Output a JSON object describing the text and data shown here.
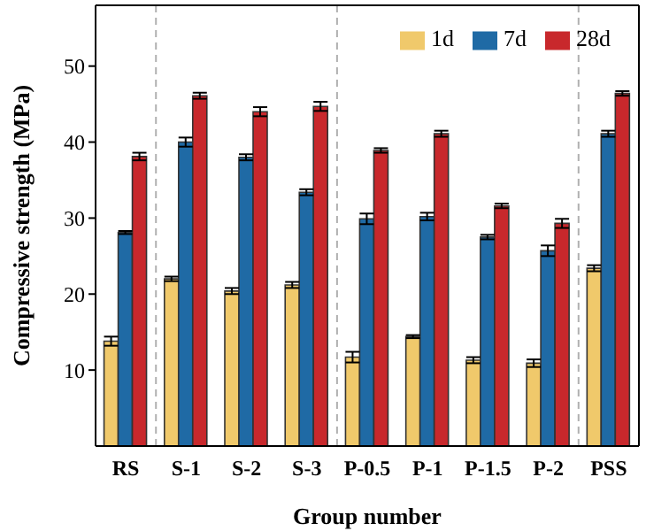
{
  "chart_data": {
    "type": "bar",
    "xlabel": "Group number",
    "ylabel": "Compressive strength (MPa)",
    "categories": [
      "RS",
      "S-1",
      "S-2",
      "S-3",
      "P-0.5",
      "P-1",
      "P-1.5",
      "P-2",
      "PSS"
    ],
    "series": [
      {
        "name": "1d",
        "color": "#f0c96b",
        "values": [
          13.8,
          22.0,
          20.4,
          21.2,
          11.7,
          14.4,
          11.3,
          10.9,
          23.4
        ],
        "errors": [
          0.6,
          0.3,
          0.4,
          0.4,
          0.7,
          0.2,
          0.4,
          0.5,
          0.4
        ]
      },
      {
        "name": "7d",
        "color": "#1f6aa5",
        "values": [
          28.1,
          40.0,
          38.0,
          33.4,
          29.9,
          30.2,
          27.5,
          25.7,
          41.1
        ],
        "errors": [
          0.2,
          0.6,
          0.4,
          0.4,
          0.7,
          0.5,
          0.3,
          0.7,
          0.4
        ]
      },
      {
        "name": "28d",
        "color": "#c8282c",
        "values": [
          38.1,
          46.1,
          44.0,
          44.7,
          38.9,
          41.1,
          31.6,
          29.3,
          46.4
        ],
        "errors": [
          0.5,
          0.4,
          0.6,
          0.6,
          0.3,
          0.4,
          0.3,
          0.6,
          0.3
        ]
      }
    ],
    "ylim": [
      0,
      58
    ],
    "yticks": [
      10,
      20,
      30,
      40,
      50
    ],
    "grid": false,
    "legend": "top right"
  }
}
